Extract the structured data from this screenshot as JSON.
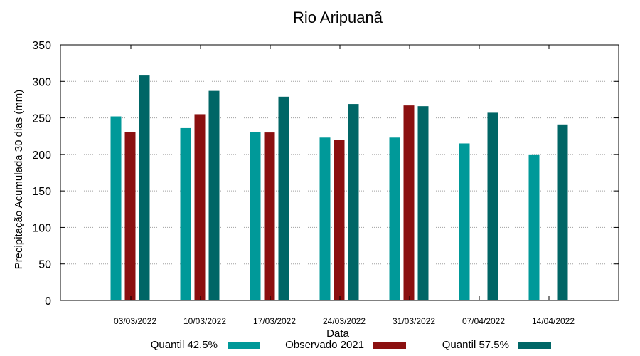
{
  "chart_data": {
    "type": "bar",
    "title": "Rio Aripuanã",
    "xlabel": "Data",
    "ylabel": "Precipitação Acumulada 30 dias (mm)",
    "ylim": [
      0,
      350
    ],
    "yticks": [
      0,
      50,
      100,
      150,
      200,
      250,
      300,
      350
    ],
    "grid": true,
    "legend_position": "bottom",
    "categories": [
      "03/03/2022",
      "10/03/2022",
      "17/03/2022",
      "24/03/2022",
      "31/03/2022",
      "07/04/2022",
      "14/04/2022"
    ],
    "series": [
      {
        "name": "Quantil 42.5%",
        "color": "#009999",
        "values": [
          252,
          236,
          231,
          223,
          223,
          215,
          200
        ]
      },
      {
        "name": "Observado 2021",
        "color": "#8b1010",
        "values": [
          231,
          255,
          230,
          220,
          267,
          null,
          null
        ]
      },
      {
        "name": "Quantil 57.5%",
        "color": "#006666",
        "values": [
          308,
          287,
          279,
          269,
          266,
          257,
          241
        ]
      }
    ]
  }
}
